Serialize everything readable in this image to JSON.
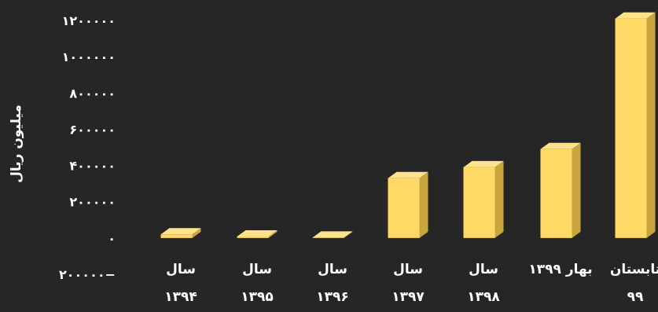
{
  "chart_data": {
    "type": "bar",
    "style": "3d-column",
    "ylabel": "میلیون ریال",
    "ylim": [
      -200000,
      1200000
    ],
    "yticks": [
      -200000,
      0,
      200000,
      400000,
      600000,
      800000,
      1000000,
      1200000
    ],
    "ytick_labels": [
      "۲۰۰۰۰۰−",
      "۰",
      "۲۰۰۰۰۰",
      "۴۰۰۰۰۰",
      "۶۰۰۰۰۰",
      "۸۰۰۰۰۰",
      "۱۰۰۰۰۰۰",
      "۱۲۰۰۰۰۰"
    ],
    "categories": [
      [
        "سال",
        "۱۳۹۴"
      ],
      [
        "سال",
        "۱۳۹۵"
      ],
      [
        "سال",
        "۱۳۹۶"
      ],
      [
        "سال",
        "۱۳۹۷"
      ],
      [
        "سال",
        "۱۳۹۸"
      ],
      [
        "بهار ۱۳۹۹"
      ],
      [
        "تابستان",
        "۹۹"
      ]
    ],
    "values": [
      20000,
      8000,
      2000,
      330000,
      390000,
      490000,
      1210000
    ],
    "bar_color": "#FFD966",
    "grid": false
  }
}
